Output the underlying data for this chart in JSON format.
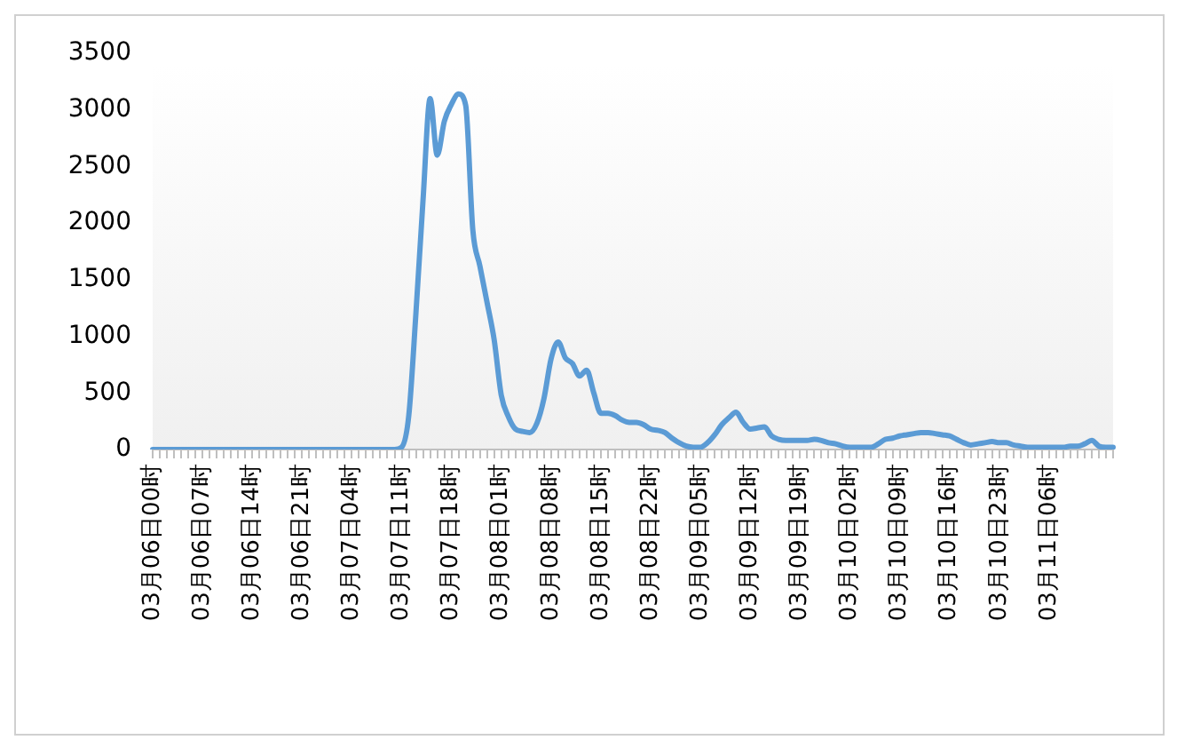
{
  "chart_data": {
    "type": "line",
    "categories": [
      "03月06日00时",
      null,
      null,
      null,
      null,
      null,
      null,
      "03月06日07时",
      null,
      null,
      null,
      null,
      null,
      null,
      "03月06日14时",
      null,
      null,
      null,
      null,
      null,
      null,
      "03月06日21时",
      null,
      null,
      null,
      null,
      null,
      null,
      "03月07日04时",
      null,
      null,
      null,
      null,
      null,
      null,
      "03月07日11时",
      null,
      null,
      null,
      null,
      null,
      null,
      "03月07日18时",
      null,
      null,
      null,
      null,
      null,
      null,
      "03月08日01时",
      null,
      null,
      null,
      null,
      null,
      null,
      "03月08日08时",
      null,
      null,
      null,
      null,
      null,
      null,
      "03月08日15时",
      null,
      null,
      null,
      null,
      null,
      null,
      "03月08日22时",
      null,
      null,
      null,
      null,
      null,
      null,
      "03月09日05时",
      null,
      null,
      null,
      null,
      null,
      null,
      "03月09日12时",
      null,
      null,
      null,
      null,
      null,
      null,
      "03月09日19时",
      null,
      null,
      null,
      null,
      null,
      null,
      "03月10日02时",
      null,
      null,
      null,
      null,
      null,
      null,
      "03月10日09时",
      null,
      null,
      null,
      null,
      null,
      null,
      "03月10日16时",
      null,
      null,
      null,
      null,
      null,
      null,
      "03月10日23时",
      null,
      null,
      null,
      null,
      null,
      null,
      "03月11日06时",
      null,
      null,
      null,
      null,
      null,
      null,
      null,
      null,
      null
    ],
    "series": [
      {
        "color": "#5b9bd5",
        "values": [
          0,
          0,
          0,
          0,
          0,
          0,
          0,
          0,
          0,
          0,
          0,
          0,
          0,
          0,
          0,
          0,
          0,
          0,
          0,
          0,
          0,
          0,
          0,
          0,
          0,
          0,
          0,
          0,
          0,
          0,
          0,
          0,
          0,
          0,
          0,
          20,
          300,
          1200,
          2200,
          3100,
          2600,
          2900,
          3050,
          3140,
          3040,
          1940,
          1620,
          1300,
          970,
          480,
          290,
          180,
          160,
          150,
          230,
          450,
          800,
          950,
          810,
          760,
          650,
          700,
          500,
          320,
          320,
          300,
          260,
          240,
          240,
          220,
          180,
          170,
          150,
          100,
          60,
          30,
          20,
          20,
          60,
          130,
          220,
          280,
          330,
          240,
          180,
          190,
          200,
          120,
          90,
          80,
          80,
          80,
          80,
          90,
          80,
          60,
          50,
          30,
          20,
          20,
          20,
          20,
          50,
          90,
          100,
          120,
          130,
          140,
          150,
          150,
          140,
          130,
          120,
          90,
          60,
          40,
          50,
          60,
          70,
          60,
          60,
          40,
          30,
          20,
          20,
          20,
          20,
          20,
          20,
          30,
          30,
          50,
          80,
          30,
          20,
          20
        ]
      }
    ],
    "ylim": [
      0,
      3500
    ],
    "yticks": [
      0,
      500,
      1000,
      1500,
      2000,
      2500,
      3000,
      3500
    ],
    "grid": false,
    "legend": false,
    "marker": "none",
    "line_style": "solid"
  }
}
